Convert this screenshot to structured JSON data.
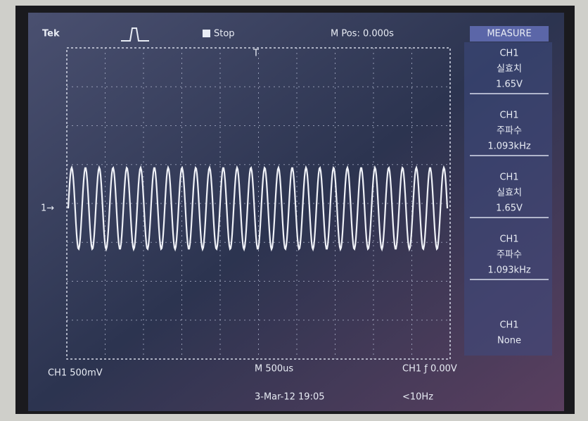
{
  "header": {
    "brand": "Tek",
    "status": "Stop",
    "position": "M Pos: 0.000s"
  },
  "menu": {
    "title": "MEASURE",
    "items": [
      {
        "source": "CH1",
        "kind": "실효치",
        "value": "1.65V"
      },
      {
        "source": "CH1",
        "kind": "주파수",
        "value": "1.093kHz"
      },
      {
        "source": "CH1",
        "kind": "실효치",
        "value": "1.65V"
      },
      {
        "source": "CH1",
        "kind": "주파수",
        "value": "1.093kHz"
      }
    ],
    "last": {
      "source": "CH1",
      "kind": "None"
    }
  },
  "footer": {
    "channel": "CH1 500mV",
    "timebase": "M 500us",
    "trigger": "CH1 ƒ 0.00V",
    "date": "3-Mar-12 19:05",
    "frequency": "<10Hz"
  }
}
